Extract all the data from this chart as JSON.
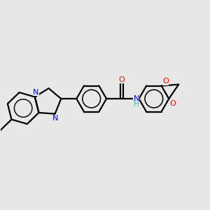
{
  "background_color": "#e8e8e8",
  "bond_color": "#000000",
  "n_color": "#0000ff",
  "o_color": "#ff0000",
  "h_color": "#4aadad",
  "line_width": 1.6,
  "figsize": [
    3.0,
    3.0
  ],
  "dpi": 100,
  "xlim": [
    0,
    10
  ],
  "ylim": [
    0,
    10
  ]
}
